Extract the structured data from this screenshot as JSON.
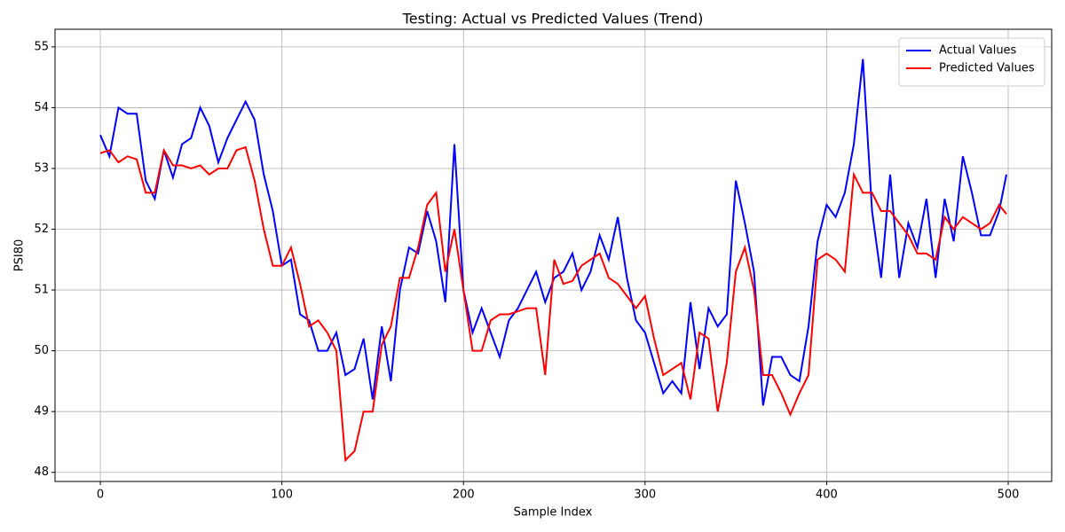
{
  "chart_data": {
    "type": "line",
    "title": "Testing: Actual vs Predicted Values (Trend)",
    "x_label": "Sample Index",
    "y_label": "PSI80",
    "x": [
      0,
      5,
      10,
      15,
      20,
      25,
      30,
      35,
      40,
      45,
      50,
      55,
      60,
      65,
      70,
      75,
      80,
      85,
      90,
      95,
      100,
      105,
      110,
      115,
      120,
      125,
      130,
      135,
      140,
      145,
      150,
      155,
      160,
      165,
      170,
      175,
      180,
      185,
      190,
      195,
      200,
      205,
      210,
      215,
      220,
      225,
      230,
      235,
      240,
      245,
      250,
      255,
      260,
      265,
      270,
      275,
      280,
      285,
      290,
      295,
      300,
      305,
      310,
      315,
      320,
      325,
      330,
      335,
      340,
      345,
      350,
      355,
      360,
      365,
      370,
      375,
      380,
      385,
      390,
      395,
      400,
      405,
      410,
      415,
      420,
      425,
      430,
      435,
      440,
      445,
      450,
      455,
      460,
      465,
      470,
      475,
      480,
      485,
      490,
      495,
      499
    ],
    "series": [
      {
        "name": "Actual Values",
        "color": "#0000ff",
        "values": [
          53.55,
          53.2,
          54.0,
          53.9,
          53.9,
          52.8,
          52.5,
          53.3,
          52.85,
          53.4,
          53.5,
          54.0,
          53.7,
          53.1,
          53.5,
          53.8,
          54.1,
          53.8,
          52.9,
          52.3,
          51.4,
          51.5,
          50.6,
          50.5,
          50.0,
          50.0,
          50.3,
          49.6,
          49.7,
          50.2,
          49.2,
          50.4,
          49.5,
          51.0,
          51.7,
          51.6,
          52.3,
          51.8,
          50.8,
          53.4,
          51.0,
          50.3,
          50.7,
          50.3,
          49.9,
          50.5,
          50.7,
          51.0,
          51.3,
          50.8,
          51.2,
          51.3,
          51.6,
          51.0,
          51.3,
          51.9,
          51.5,
          52.2,
          51.2,
          50.5,
          50.3,
          49.8,
          49.3,
          49.5,
          49.3,
          50.8,
          49.7,
          50.7,
          50.4,
          50.6,
          52.8,
          52.1,
          51.3,
          49.1,
          49.9,
          49.9,
          49.6,
          49.5,
          50.4,
          51.8,
          52.4,
          52.2,
          52.6,
          53.4,
          54.8,
          52.3,
          51.2,
          52.9,
          51.2,
          52.1,
          51.7,
          52.5,
          51.2,
          52.5,
          51.8,
          53.2,
          52.6,
          51.9,
          51.9,
          52.3,
          52.9
        ]
      },
      {
        "name": "Predicted Values",
        "color": "#ff0000",
        "values": [
          53.25,
          53.3,
          53.1,
          53.2,
          53.15,
          52.6,
          52.6,
          53.3,
          53.05,
          53.05,
          53.0,
          53.05,
          52.9,
          53.0,
          53.0,
          53.3,
          53.35,
          52.8,
          52.0,
          51.4,
          51.4,
          51.7,
          51.1,
          50.4,
          50.5,
          50.3,
          50.0,
          48.2,
          48.35,
          49.0,
          49.0,
          50.1,
          50.4,
          51.2,
          51.2,
          51.7,
          52.4,
          52.6,
          51.3,
          52.0,
          51.0,
          50.0,
          50.0,
          50.5,
          50.6,
          50.6,
          50.65,
          50.7,
          50.7,
          49.6,
          51.5,
          51.1,
          51.15,
          51.4,
          51.5,
          51.6,
          51.2,
          51.1,
          50.9,
          50.7,
          50.9,
          50.2,
          49.6,
          49.7,
          49.8,
          49.2,
          50.3,
          50.2,
          49.0,
          49.8,
          51.3,
          51.7,
          51.0,
          49.6,
          49.6,
          49.3,
          48.95,
          49.3,
          49.6,
          51.5,
          51.6,
          51.5,
          51.3,
          52.9,
          52.6,
          52.6,
          52.3,
          52.3,
          52.1,
          51.9,
          51.6,
          51.6,
          51.5,
          52.2,
          52.0,
          52.2,
          52.1,
          52.0,
          52.1,
          52.4,
          52.25
        ]
      }
    ],
    "xlim": [
      -24.95,
      523.95
    ],
    "xticks": [
      0,
      100,
      200,
      300,
      400,
      500
    ],
    "ylim": [
      47.85,
      55.29
    ],
    "yticks": [
      48,
      49,
      50,
      51,
      52,
      53,
      54,
      55
    ],
    "grid": true,
    "legend": "upper right"
  }
}
